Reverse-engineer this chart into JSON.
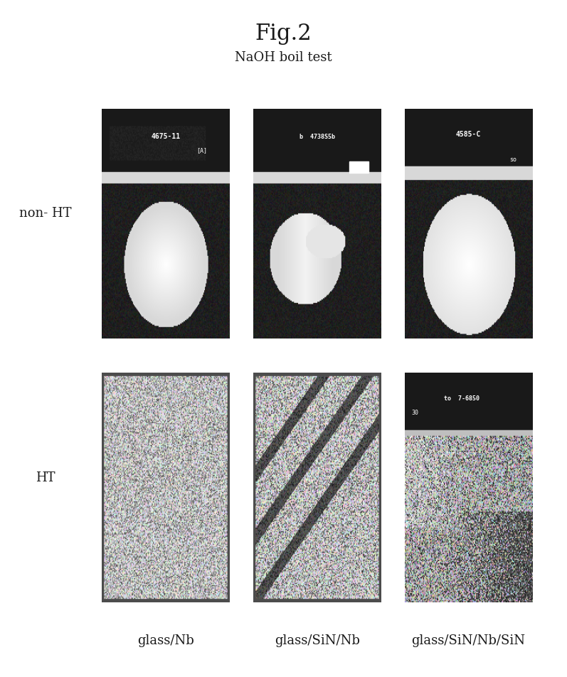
{
  "title": "Fig.2",
  "subtitle": "NaOH boil test",
  "col_labels": [
    "glass/Nb",
    "glass/SiN/Nb",
    "glass/SiN/Nb/SiN"
  ],
  "row_labels": [
    "non- HT",
    "HT"
  ],
  "title_fontsize": 22,
  "subtitle_fontsize": 13,
  "label_fontsize": 13,
  "row_label_fontsize": 13,
  "bg_color": "#ffffff",
  "panel_bg": "#1a1a1a",
  "panel_border": "#555555",
  "figure_width": 7.97,
  "figure_height": 9.53
}
